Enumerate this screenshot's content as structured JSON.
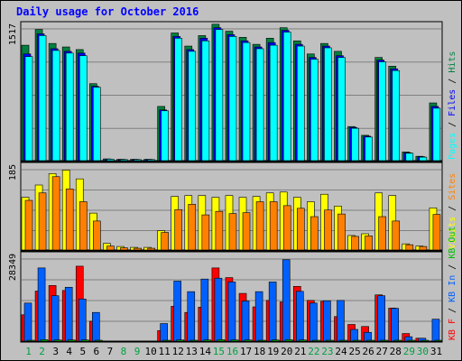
{
  "chart_data": {
    "type": "bar",
    "title": "Daily usage for October 2016",
    "categories": [
      "1",
      "2",
      "3",
      "4",
      "5",
      "6",
      "7",
      "8",
      "9",
      "10",
      "11",
      "12",
      "13",
      "14",
      "15",
      "16",
      "17",
      "18",
      "19",
      "20",
      "21",
      "22",
      "23",
      "24",
      "25",
      "26",
      "27",
      "28",
      "29",
      "30",
      "31"
    ],
    "weekend_days": [
      "1",
      "2",
      "8",
      "9",
      "15",
      "16",
      "22",
      "23",
      "29",
      "30"
    ],
    "panels": [
      {
        "id": "hits-pages-files",
        "max_label": "1517",
        "max_value": 1517,
        "legend": [
          {
            "text": "Pages",
            "color": "#00ffff"
          },
          {
            "text": " / ",
            "color": "#000000"
          },
          {
            "text": "Files",
            "color": "#0000ff"
          },
          {
            "text": " / ",
            "color": "#000000"
          },
          {
            "text": "Hits",
            "color": "#008040"
          }
        ],
        "series": [
          {
            "name": "Hits",
            "color": "#008040",
            "values": [
              1320,
              1500,
              1340,
              1300,
              1270,
              880,
              20,
              15,
              15,
              15,
              620,
              1460,
              1310,
              1430,
              1560,
              1480,
              1410,
              1330,
              1400,
              1520,
              1370,
              1220,
              1340,
              1250,
              390,
              290,
              1180,
              1080,
              100,
              50,
              660
            ]
          },
          {
            "name": "Files",
            "color": "#0000ff",
            "values": [
              1220,
              1450,
              1280,
              1250,
              1230,
              850,
              18,
              14,
              14,
              14,
              580,
              1420,
              1270,
              1400,
              1520,
              1440,
              1370,
              1300,
              1350,
              1490,
              1330,
              1180,
              1310,
              1200,
              380,
              280,
              1150,
              1050,
              90,
              45,
              620
            ]
          },
          {
            "name": "Pages",
            "color": "#00ffff",
            "values": [
              1190,
              1430,
              1260,
              1230,
              1200,
              840,
              16,
              12,
              12,
              12,
              570,
              1400,
              1250,
              1370,
              1500,
              1420,
              1350,
              1280,
              1320,
              1470,
              1310,
              1160,
              1290,
              1180,
              370,
              270,
              1130,
              1030,
              85,
              40,
              600
            ]
          }
        ]
      },
      {
        "id": "visits-sites",
        "max_label": "185",
        "max_value": 185,
        "legend": [
          {
            "text": "Visits",
            "color": "#ffff00"
          },
          {
            "text": " / ",
            "color": "#000000"
          },
          {
            "text": "Sites",
            "color": "#ff8000"
          }
        ],
        "series": [
          {
            "name": "Visits",
            "color": "#ffff00",
            "values": [
              120,
              148,
              174,
              182,
              162,
              84,
              15,
              8,
              6,
              6,
              44,
              122,
              124,
              124,
              120,
              124,
              120,
              122,
              130,
              132,
              120,
              110,
              127,
              100,
              33,
              37,
              130,
              124,
              14,
              9,
              96
            ]
          },
          {
            "name": "Sites",
            "color": "#ff8000",
            "values": [
              113,
              130,
              167,
              139,
              110,
              66,
              9,
              5,
              4,
              4,
              40,
              92,
              104,
              80,
              88,
              83,
              85,
              110,
              110,
              101,
              95,
              76,
              91,
              82,
              31,
              32,
              76,
              66,
              12,
              8,
              81
            ]
          }
        ]
      },
      {
        "id": "kbytes",
        "max_label": "28349",
        "max_value": 28349,
        "legend": [
          {
            "text": "KB F",
            "color": "#ff0000"
          },
          {
            "text": " / ",
            "color": "#000000"
          },
          {
            "text": "KB In",
            "color": "#0060ff"
          },
          {
            "text": " / ",
            "color": "#000000"
          },
          {
            "text": "KB Out",
            "color": "#00c000"
          }
        ],
        "series": [
          {
            "name": "KB F",
            "color": "#ff0000",
            "values": [
              9000,
              17100,
              19000,
              17300,
              25600,
              6800,
              0,
              0,
              0,
              0,
              3600,
              11900,
              9800,
              11600,
              25000,
              21700,
              16300,
              11700,
              13900,
              13400,
              18700,
              13900,
              13600,
              8400,
              5700,
              5000,
              15800,
              11300,
              2600,
              1000,
              0
            ]
          },
          {
            "name": "KB In",
            "color": "#0060ff",
            "values": [
              13000,
              25000,
              15500,
              18400,
              14400,
              9800,
              0,
              0,
              0,
              0,
              6000,
              20500,
              16900,
              21200,
              21500,
              20200,
              13700,
              16900,
              20200,
              27800,
              17000,
              13000,
              13800,
              13900,
              4000,
              3000,
              15500,
              11200,
              1500,
              1000,
              7500
            ]
          },
          {
            "name": "KB Out",
            "color": "#00c000",
            "values": [
              300,
              500,
              400,
              400,
              400,
              200,
              0,
              0,
              0,
              0,
              100,
              400,
              300,
              400,
              500,
              400,
              400,
              300,
              400,
              500,
              400,
              300,
              300,
              300,
              100,
              100,
              300,
              300,
              50,
              30,
              200
            ]
          }
        ]
      }
    ]
  }
}
